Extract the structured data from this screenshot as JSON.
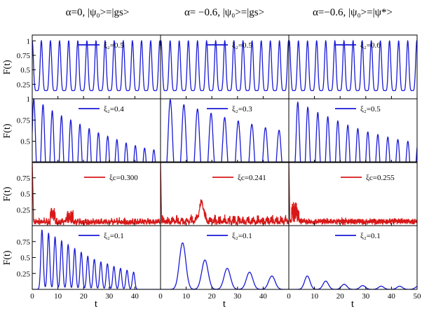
{
  "chart_data": {
    "type": "line",
    "columns": [
      {
        "title": "α=0, |ψ₀>=|gs>"
      },
      {
        "title": "α= −0.6, |ψ₀>=|gs>"
      },
      {
        "title": "α=−0.6, |ψ₀>=|ψ*>"
      }
    ],
    "row_ylabel": "F(t)",
    "xlabel": "t",
    "x_range": [
      0,
      50
    ],
    "x_ticks": [
      "0",
      "10",
      "20",
      "30",
      "40",
      "50"
    ],
    "x_ticks_left": [
      "0",
      "10",
      "20",
      "30",
      "40"
    ],
    "rows": [
      {
        "y_range": [
          0,
          1.1
        ],
        "y_ticks": [
          "0.25",
          "0.5",
          "0.75",
          "1"
        ]
      },
      {
        "y_range": [
          0.25,
          1.0
        ],
        "y_ticks": [
          "0.5",
          "0.75",
          "1"
        ]
      },
      {
        "y_range": [
          0,
          1.0
        ],
        "y_ticks": [
          "0.25",
          "0.5",
          "0.75"
        ]
      },
      {
        "y_range": [
          0,
          1.0
        ],
        "y_ticks": [
          "0.25",
          "0.5",
          "0.75"
        ]
      }
    ],
    "colors": {
      "blue": "#1a1ad6",
      "red": "#d81818"
    },
    "panels": [
      {
        "row": 0,
        "col": 0,
        "label": "ξ₂=0.5",
        "color": "blue",
        "kind": "fast"
      },
      {
        "row": 0,
        "col": 1,
        "label": "ξ₂=0.5",
        "color": "blue",
        "kind": "fast"
      },
      {
        "row": 0,
        "col": 2,
        "label": "ξ₂=0.6",
        "color": "blue",
        "kind": "fast"
      },
      {
        "row": 1,
        "col": 0,
        "label": "ξ₂=0.4",
        "color": "blue",
        "kind": "decay"
      },
      {
        "row": 1,
        "col": 1,
        "label": "ξ₂=0.3",
        "color": "blue",
        "kind": "decay"
      },
      {
        "row": 1,
        "col": 2,
        "label": "ξ₂=0.5",
        "color": "blue",
        "kind": "decay"
      },
      {
        "row": 2,
        "col": 0,
        "label": "ξc=0.300",
        "color": "red",
        "kind": "noise"
      },
      {
        "row": 2,
        "col": 1,
        "label": "ξc=0.241",
        "color": "red",
        "kind": "noise"
      },
      {
        "row": 2,
        "col": 2,
        "label": "ξc=0.255",
        "color": "red",
        "kind": "noise"
      },
      {
        "row": 3,
        "col": 0,
        "label": "ξ₂=0.1",
        "color": "blue",
        "kind": "slow"
      },
      {
        "row": 3,
        "col": 1,
        "label": "ξ₂=0.1",
        "color": "blue",
        "kind": "slow"
      },
      {
        "row": 3,
        "col": 2,
        "label": "ξ₂=0.1",
        "color": "blue",
        "kind": "slow"
      }
    ],
    "series_peaks": {
      "0-0": {
        "period": 3.55,
        "start": 0.0,
        "height": 1.0,
        "decay": 0,
        "width": 0.9
      },
      "0-1": {
        "period": 3.55,
        "start": 0.2,
        "height": 1.0,
        "decay": 0,
        "width": 0.9
      },
      "0-2": {
        "period": 3.55,
        "start": 0.2,
        "height": 1.0,
        "decay": 0,
        "width": 0.9
      },
      "1-0": {
        "heights": [
          1.0,
          0.93,
          0.86,
          0.8,
          0.75,
          0.7,
          0.65,
          0.6,
          0.56,
          0.52,
          0.48,
          0.45,
          0.42,
          0.4,
          0.39
        ],
        "period": 3.6,
        "start": 0.6
      },
      "1-1": {
        "heights": [
          0.99,
          0.93,
          0.88,
          0.83,
          0.78,
          0.74,
          0.7,
          0.66,
          0.63,
          0.6
        ],
        "period": 5.3,
        "start": 3.8
      },
      "1-2": {
        "heights": [
          0.96,
          0.9,
          0.84,
          0.79,
          0.74,
          0.69,
          0.65,
          0.61,
          0.58,
          0.55,
          0.52,
          0.5,
          0.48
        ],
        "period": 3.9,
        "start": 3.5
      },
      "3-0": {
        "heights": [
          0.93,
          0.88,
          0.82,
          0.76,
          0.7,
          0.64,
          0.58,
          0.52,
          0.47,
          0.43,
          0.4,
          0.36,
          0.33,
          0.3,
          0.27
        ],
        "period": 2.55,
        "start": 3.8
      },
      "3-1": {
        "heights": [
          0.73,
          0.46,
          0.33,
          0.27,
          0.21
        ],
        "period": 8.7,
        "start": 8.6
      },
      "3-2": {
        "heights": [
          0.21,
          0.13,
          0.08,
          0.06,
          0.05,
          0.05,
          0.05,
          0.05
        ],
        "period": 7.2,
        "start": 7.2
      }
    }
  }
}
